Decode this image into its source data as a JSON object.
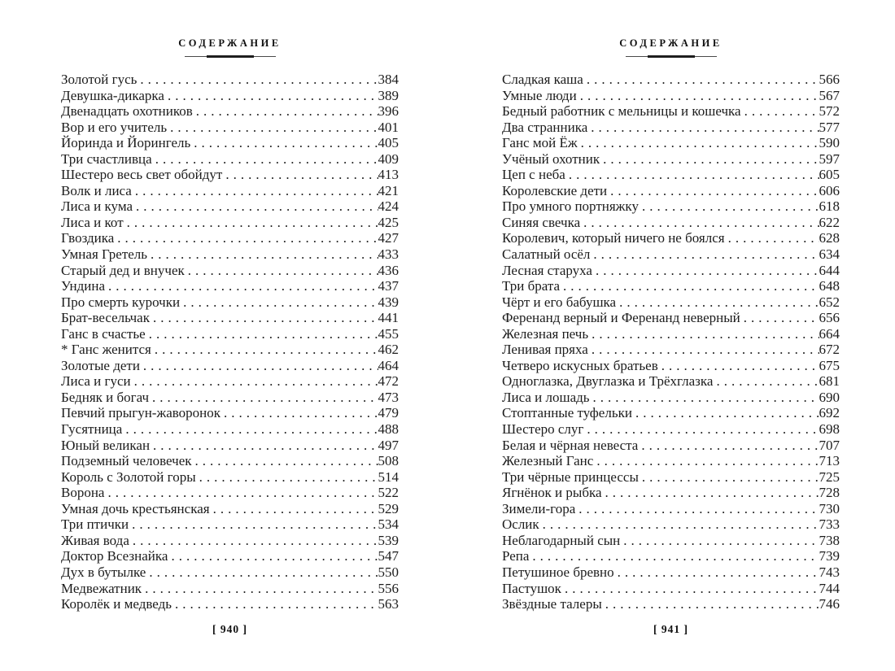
{
  "pages": [
    {
      "header": "СОДЕРЖАНИЕ",
      "folio": "[ 940 ]",
      "entries": [
        {
          "title": "Золотой гусь",
          "page": "384"
        },
        {
          "title": "Девушка-дикарка",
          "page": "389"
        },
        {
          "title": "Двенадцать охотников",
          "page": "396"
        },
        {
          "title": "Вор и его учитель",
          "page": "401"
        },
        {
          "title": "Йоринда и Йорингель",
          "page": "405"
        },
        {
          "title": "Три счастливца",
          "page": "409"
        },
        {
          "title": "Шестеро весь свет обойдут",
          "page": "413"
        },
        {
          "title": "Волк и лиса",
          "page": "421"
        },
        {
          "title": "Лиса и кума",
          "page": "424"
        },
        {
          "title": "Лиса и кот",
          "page": "425"
        },
        {
          "title": "Гвоздика",
          "page": "427"
        },
        {
          "title": "Умная Гретель",
          "page": "433"
        },
        {
          "title": "Старый дед и внучек",
          "page": "436"
        },
        {
          "title": "Ундина",
          "page": "437"
        },
        {
          "title": "Про смерть курочки",
          "page": "439"
        },
        {
          "title": "Брат-весельчак",
          "page": "441"
        },
        {
          "title": "Ганс в счастье",
          "page": "455"
        },
        {
          "title": "* Ганс женится",
          "page": "462"
        },
        {
          "title": "Золотые дети",
          "page": "464"
        },
        {
          "title": "Лиса и гуси",
          "page": "472"
        },
        {
          "title": "Бедняк и богач",
          "page": "473"
        },
        {
          "title": "Певчий прыгун-жаворонок",
          "page": "479"
        },
        {
          "title": "Гусятница",
          "page": "488"
        },
        {
          "title": "Юный великан",
          "page": "497"
        },
        {
          "title": "Подземный человечек",
          "page": "508"
        },
        {
          "title": "Король с Золотой горы",
          "page": "514"
        },
        {
          "title": "Ворона",
          "page": "522"
        },
        {
          "title": "Умная дочь крестьянская",
          "page": "529"
        },
        {
          "title": "Три птички",
          "page": "534"
        },
        {
          "title": "Живая вода",
          "page": "539"
        },
        {
          "title": "Доктор Всезнайка",
          "page": "547"
        },
        {
          "title": "Дух в бутылке",
          "page": "550"
        },
        {
          "title": "Медвежатник",
          "page": "556"
        },
        {
          "title": "Королёк и медведь",
          "page": "563"
        }
      ]
    },
    {
      "header": "СОДЕРЖАНИЕ",
      "folio": "[ 941 ]",
      "entries": [
        {
          "title": "Сладкая каша",
          "page": "566"
        },
        {
          "title": "Умные люди",
          "page": "567"
        },
        {
          "title": "Бедный работник с мельницы и кошечка",
          "page": "572"
        },
        {
          "title": "Два странника",
          "page": "577"
        },
        {
          "title": "Ганс мой Ёж",
          "page": "590"
        },
        {
          "title": "Учёный охотник",
          "page": "597"
        },
        {
          "title": "Цеп с неба",
          "page": "605"
        },
        {
          "title": "Королевские дети",
          "page": "606"
        },
        {
          "title": "Про умного портняжку",
          "page": "618"
        },
        {
          "title": "Синяя свечка",
          "page": "622"
        },
        {
          "title": "Королевич, который ничего не боялся",
          "page": "628"
        },
        {
          "title": "Салатный осёл",
          "page": "634"
        },
        {
          "title": "Лесная старуха",
          "page": "644"
        },
        {
          "title": "Три брата",
          "page": "648"
        },
        {
          "title": "Чёрт и его бабушка",
          "page": "652"
        },
        {
          "title": "Ференанд верный и Ференанд неверный",
          "page": "656"
        },
        {
          "title": "Железная печь",
          "page": "664"
        },
        {
          "title": "Ленивая пряха",
          "page": "672"
        },
        {
          "title": "Четверо искусных братьев",
          "page": "675"
        },
        {
          "title": "Одноглазка, Двуглазка и Трёхглазка",
          "page": "681"
        },
        {
          "title": "Лиса и лошадь",
          "page": "690"
        },
        {
          "title": "Стоптанные туфельки",
          "page": "692"
        },
        {
          "title": "Шестеро слуг",
          "page": "698"
        },
        {
          "title": "Белая и чёрная невеста",
          "page": "707"
        },
        {
          "title": "Железный Ганс",
          "page": "713"
        },
        {
          "title": "Три чёрные принцессы",
          "page": "725"
        },
        {
          "title": "Ягнёнок и рыбка",
          "page": "728"
        },
        {
          "title": "Зимели-гора",
          "page": "730"
        },
        {
          "title": "Ослик",
          "page": "733"
        },
        {
          "title": "Неблагодарный сын",
          "page": "738"
        },
        {
          "title": "Репа",
          "page": "739"
        },
        {
          "title": "Петушиное бревно",
          "page": "743"
        },
        {
          "title": "Пастушок",
          "page": "744"
        },
        {
          "title": "Звёздные талеры",
          "page": "746"
        }
      ]
    }
  ]
}
